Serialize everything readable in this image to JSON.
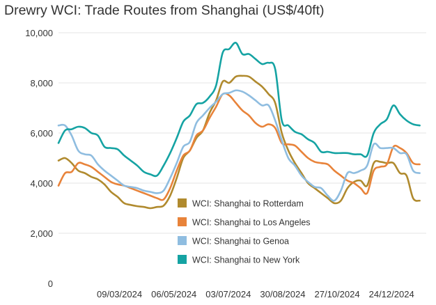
{
  "chart_data": {
    "type": "line",
    "title": "Drewry WCI: Trade Routes from Shanghai (US$/40ft)",
    "xlabel": "",
    "ylabel": "",
    "ylim": [
      0,
      10000
    ],
    "yticks": [
      0,
      2000,
      4000,
      6000,
      8000,
      10000
    ],
    "ytick_labels": [
      "0",
      "2,000",
      "4,000",
      "6,000",
      "8,000",
      "10,000"
    ],
    "xlim": [
      "2024-01-04",
      "2025-01-30"
    ],
    "xticks": [
      "2024-03-09",
      "2024-05-06",
      "2024-07-03",
      "2024-08-30",
      "2024-10-27",
      "2024-12-24"
    ],
    "xtick_labels": [
      "09/03/2024",
      "06/05/2024",
      "03/07/2024",
      "30/08/2024",
      "27/10/2024",
      "24/12/2024"
    ],
    "grid": "horizontal",
    "legend_position": "bottom-center",
    "series": [
      {
        "name": "WCI: Shanghai to Rotterdam",
        "color": "#b08a2e",
        "points": [
          [
            "2024-01-04",
            4900
          ],
          [
            "2024-01-11",
            5000
          ],
          [
            "2024-01-18",
            4800
          ],
          [
            "2024-01-25",
            4500
          ],
          [
            "2024-02-01",
            4400
          ],
          [
            "2024-02-08",
            4250
          ],
          [
            "2024-02-15",
            4150
          ],
          [
            "2024-02-22",
            3950
          ],
          [
            "2024-02-29",
            3650
          ],
          [
            "2024-03-07",
            3450
          ],
          [
            "2024-03-14",
            3200
          ],
          [
            "2024-03-21",
            3130
          ],
          [
            "2024-03-28",
            3080
          ],
          [
            "2024-04-04",
            3050
          ],
          [
            "2024-04-11",
            3000
          ],
          [
            "2024-04-18",
            3050
          ],
          [
            "2024-04-25",
            3100
          ],
          [
            "2024-05-02",
            3500
          ],
          [
            "2024-05-09",
            4200
          ],
          [
            "2024-05-16",
            5000
          ],
          [
            "2024-05-23",
            5300
          ],
          [
            "2024-05-30",
            5800
          ],
          [
            "2024-06-06",
            6100
          ],
          [
            "2024-06-13",
            6800
          ],
          [
            "2024-06-20",
            7300
          ],
          [
            "2024-06-27",
            8050
          ],
          [
            "2024-07-04",
            8000
          ],
          [
            "2024-07-11",
            8250
          ],
          [
            "2024-07-18",
            8280
          ],
          [
            "2024-07-25",
            8250
          ],
          [
            "2024-08-01",
            8050
          ],
          [
            "2024-08-08",
            7850
          ],
          [
            "2024-08-15",
            7550
          ],
          [
            "2024-08-22",
            7200
          ],
          [
            "2024-08-29",
            6000
          ],
          [
            "2024-09-05",
            5300
          ],
          [
            "2024-09-12",
            4800
          ],
          [
            "2024-09-19",
            4400
          ],
          [
            "2024-09-26",
            4000
          ],
          [
            "2024-10-03",
            3800
          ],
          [
            "2024-10-10",
            3600
          ],
          [
            "2024-10-17",
            3400
          ],
          [
            "2024-10-24",
            3200
          ],
          [
            "2024-10-31",
            3300
          ],
          [
            "2024-11-07",
            3800
          ],
          [
            "2024-11-14",
            4050
          ],
          [
            "2024-11-21",
            4100
          ],
          [
            "2024-11-28",
            3900
          ],
          [
            "2024-12-05",
            4800
          ],
          [
            "2024-12-12",
            4850
          ],
          [
            "2024-12-19",
            4800
          ],
          [
            "2024-12-26",
            4800
          ],
          [
            "2025-01-02",
            4400
          ],
          [
            "2025-01-09",
            4300
          ],
          [
            "2025-01-16",
            3400
          ],
          [
            "2025-01-23",
            3300
          ]
        ]
      },
      {
        "name": "WCI: Shanghai to Los Angeles",
        "color": "#e8833a",
        "points": [
          [
            "2024-01-04",
            3900
          ],
          [
            "2024-01-11",
            4400
          ],
          [
            "2024-01-18",
            4450
          ],
          [
            "2024-01-25",
            4800
          ],
          [
            "2024-02-01",
            4750
          ],
          [
            "2024-02-08",
            4650
          ],
          [
            "2024-02-15",
            4450
          ],
          [
            "2024-02-22",
            4250
          ],
          [
            "2024-02-29",
            4050
          ],
          [
            "2024-03-07",
            3950
          ],
          [
            "2024-03-14",
            3900
          ],
          [
            "2024-03-21",
            3800
          ],
          [
            "2024-03-28",
            3700
          ],
          [
            "2024-04-04",
            3600
          ],
          [
            "2024-04-11",
            3500
          ],
          [
            "2024-04-18",
            3400
          ],
          [
            "2024-04-25",
            3350
          ],
          [
            "2024-05-02",
            3800
          ],
          [
            "2024-05-09",
            4500
          ],
          [
            "2024-05-16",
            5100
          ],
          [
            "2024-05-23",
            5300
          ],
          [
            "2024-05-30",
            5900
          ],
          [
            "2024-06-06",
            6100
          ],
          [
            "2024-06-13",
            6600
          ],
          [
            "2024-06-20",
            7050
          ],
          [
            "2024-06-27",
            7550
          ],
          [
            "2024-07-04",
            7500
          ],
          [
            "2024-07-11",
            7200
          ],
          [
            "2024-07-18",
            6900
          ],
          [
            "2024-07-25",
            6700
          ],
          [
            "2024-08-01",
            6400
          ],
          [
            "2024-08-08",
            6250
          ],
          [
            "2024-08-15",
            6350
          ],
          [
            "2024-08-22",
            6200
          ],
          [
            "2024-08-29",
            5600
          ],
          [
            "2024-09-05",
            5550
          ],
          [
            "2024-09-12",
            5500
          ],
          [
            "2024-09-19",
            5250
          ],
          [
            "2024-09-26",
            5000
          ],
          [
            "2024-10-03",
            4850
          ],
          [
            "2024-10-10",
            4800
          ],
          [
            "2024-10-17",
            4750
          ],
          [
            "2024-10-24",
            4500
          ],
          [
            "2024-10-31",
            4300
          ],
          [
            "2024-11-07",
            4100
          ],
          [
            "2024-11-14",
            4000
          ],
          [
            "2024-11-21",
            3800
          ],
          [
            "2024-11-28",
            3600
          ],
          [
            "2024-12-05",
            4500
          ],
          [
            "2024-12-12",
            4650
          ],
          [
            "2024-12-19",
            4750
          ],
          [
            "2024-12-26",
            5450
          ],
          [
            "2025-01-02",
            5400
          ],
          [
            "2025-01-09",
            5200
          ],
          [
            "2025-01-16",
            4800
          ],
          [
            "2025-01-23",
            4750
          ]
        ]
      },
      {
        "name": "WCI: Shanghai to Genoa",
        "color": "#8fbde0",
        "points": [
          [
            "2024-01-04",
            6300
          ],
          [
            "2024-01-11",
            6300
          ],
          [
            "2024-01-18",
            5900
          ],
          [
            "2024-01-25",
            5300
          ],
          [
            "2024-02-01",
            5150
          ],
          [
            "2024-02-08",
            5100
          ],
          [
            "2024-02-15",
            4750
          ],
          [
            "2024-02-22",
            4500
          ],
          [
            "2024-02-29",
            4300
          ],
          [
            "2024-03-07",
            4100
          ],
          [
            "2024-03-14",
            3900
          ],
          [
            "2024-03-21",
            3850
          ],
          [
            "2024-03-28",
            3800
          ],
          [
            "2024-04-04",
            3700
          ],
          [
            "2024-04-11",
            3650
          ],
          [
            "2024-04-18",
            3600
          ],
          [
            "2024-04-25",
            3700
          ],
          [
            "2024-05-02",
            4200
          ],
          [
            "2024-05-09",
            4800
          ],
          [
            "2024-05-16",
            5450
          ],
          [
            "2024-05-23",
            5650
          ],
          [
            "2024-05-30",
            6400
          ],
          [
            "2024-06-06",
            6700
          ],
          [
            "2024-06-13",
            7000
          ],
          [
            "2024-06-20",
            7250
          ],
          [
            "2024-06-27",
            7550
          ],
          [
            "2024-07-04",
            7600
          ],
          [
            "2024-07-11",
            7700
          ],
          [
            "2024-07-18",
            7650
          ],
          [
            "2024-07-25",
            7500
          ],
          [
            "2024-08-01",
            7300
          ],
          [
            "2024-08-08",
            7100
          ],
          [
            "2024-08-15",
            7100
          ],
          [
            "2024-08-22",
            6500
          ],
          [
            "2024-08-29",
            5700
          ],
          [
            "2024-09-05",
            5000
          ],
          [
            "2024-09-12",
            4700
          ],
          [
            "2024-09-19",
            4300
          ],
          [
            "2024-09-26",
            4050
          ],
          [
            "2024-10-03",
            3850
          ],
          [
            "2024-10-10",
            3800
          ],
          [
            "2024-10-17",
            3500
          ],
          [
            "2024-10-24",
            3300
          ],
          [
            "2024-10-31",
            3700
          ],
          [
            "2024-11-07",
            4400
          ],
          [
            "2024-11-14",
            4400
          ],
          [
            "2024-11-21",
            4500
          ],
          [
            "2024-11-28",
            4700
          ],
          [
            "2024-12-05",
            5550
          ],
          [
            "2024-12-12",
            5400
          ],
          [
            "2024-12-19",
            5400
          ],
          [
            "2024-12-26",
            5400
          ],
          [
            "2025-01-02",
            5200
          ],
          [
            "2025-01-09",
            5150
          ],
          [
            "2025-01-16",
            4500
          ],
          [
            "2025-01-23",
            4400
          ]
        ]
      },
      {
        "name": "WCI: Shanghai to New York",
        "color": "#15a3a3",
        "points": [
          [
            "2024-01-04",
            5600
          ],
          [
            "2024-01-11",
            6100
          ],
          [
            "2024-01-18",
            6150
          ],
          [
            "2024-01-25",
            6250
          ],
          [
            "2024-02-01",
            6200
          ],
          [
            "2024-02-08",
            6000
          ],
          [
            "2024-02-15",
            5900
          ],
          [
            "2024-02-22",
            5450
          ],
          [
            "2024-02-29",
            5400
          ],
          [
            "2024-03-07",
            5350
          ],
          [
            "2024-03-14",
            5100
          ],
          [
            "2024-03-21",
            4900
          ],
          [
            "2024-03-28",
            4700
          ],
          [
            "2024-04-04",
            4450
          ],
          [
            "2024-04-11",
            4350
          ],
          [
            "2024-04-18",
            4300
          ],
          [
            "2024-04-25",
            4700
          ],
          [
            "2024-05-02",
            5200
          ],
          [
            "2024-05-09",
            5800
          ],
          [
            "2024-05-16",
            6450
          ],
          [
            "2024-05-23",
            6700
          ],
          [
            "2024-05-30",
            7150
          ],
          [
            "2024-06-06",
            7200
          ],
          [
            "2024-06-13",
            7450
          ],
          [
            "2024-06-20",
            7900
          ],
          [
            "2024-06-27",
            9200
          ],
          [
            "2024-07-04",
            9350
          ],
          [
            "2024-07-11",
            9600
          ],
          [
            "2024-07-18",
            9150
          ],
          [
            "2024-07-25",
            9150
          ],
          [
            "2024-08-01",
            8950
          ],
          [
            "2024-08-08",
            8750
          ],
          [
            "2024-08-15",
            8800
          ],
          [
            "2024-08-22",
            8550
          ],
          [
            "2024-08-29",
            6500
          ],
          [
            "2024-09-05",
            6300
          ],
          [
            "2024-09-12",
            6050
          ],
          [
            "2024-09-19",
            5950
          ],
          [
            "2024-09-26",
            5750
          ],
          [
            "2024-10-03",
            5600
          ],
          [
            "2024-10-10",
            5250
          ],
          [
            "2024-10-17",
            5250
          ],
          [
            "2024-10-24",
            5200
          ],
          [
            "2024-10-31",
            5200
          ],
          [
            "2024-11-07",
            5200
          ],
          [
            "2024-11-14",
            5150
          ],
          [
            "2024-11-21",
            5150
          ],
          [
            "2024-11-28",
            5100
          ],
          [
            "2024-12-05",
            6000
          ],
          [
            "2024-12-12",
            6350
          ],
          [
            "2024-12-19",
            6550
          ],
          [
            "2024-12-26",
            7100
          ],
          [
            "2025-01-02",
            6750
          ],
          [
            "2025-01-09",
            6500
          ],
          [
            "2025-01-16",
            6350
          ],
          [
            "2025-01-23",
            6300
          ]
        ]
      }
    ]
  }
}
